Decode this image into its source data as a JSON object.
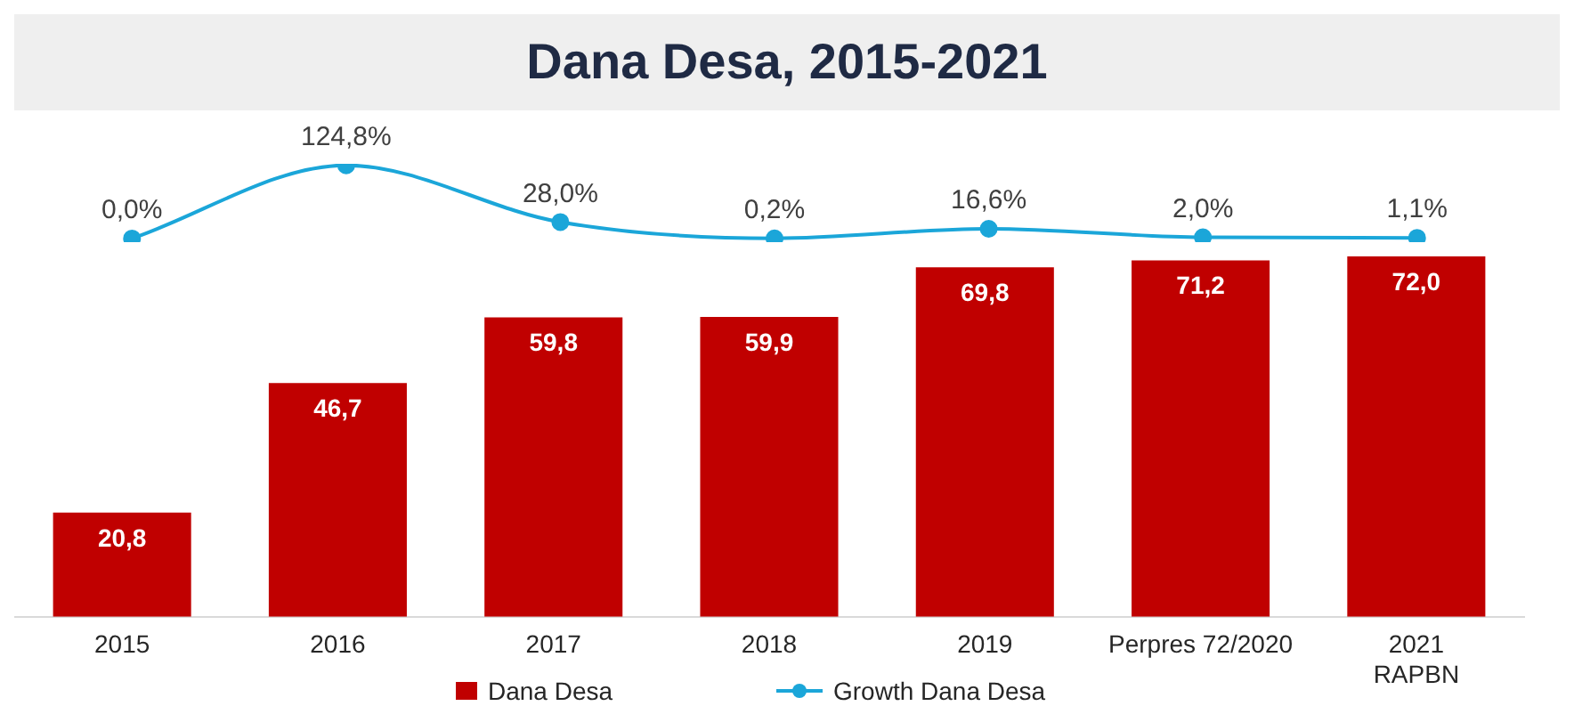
{
  "chart_data": [
    {
      "type": "line",
      "title": "Dana Desa, 2015-2021",
      "categories": [
        null,
        null,
        null,
        null,
        null,
        null,
        null
      ],
      "series": [
        {
          "name": "Growth Dana Desa",
          "color": "#1ba6d9",
          "marker": "circle",
          "values": [
            0.0,
            124.8,
            28.0,
            0.2,
            16.6,
            2.0,
            1.1
          ],
          "value_labels": [
            "0,0%",
            "124,8%",
            "28,0%",
            "0,2%",
            "16,6%",
            "2,0%",
            "1,1%"
          ]
        }
      ],
      "tick_labels": false,
      "grid": false,
      "legend": "bottom"
    },
    {
      "type": "bar",
      "categories": [
        "2015",
        "2016",
        "2017",
        "2018",
        "2019",
        "Perpres 72/2020",
        "2021\nRAPBN"
      ],
      "series": [
        {
          "name": "Dana Desa",
          "color": "#c00000",
          "values": [
            20.8,
            46.7,
            59.8,
            59.9,
            69.8,
            71.2,
            72.0
          ],
          "value_labels": [
            "20,8",
            "46,7",
            "59,8",
            "59,9",
            "69,8",
            "71,2",
            "72,0"
          ]
        }
      ],
      "tick_labels": "x",
      "grid": false,
      "legend": "bottom"
    }
  ]
}
